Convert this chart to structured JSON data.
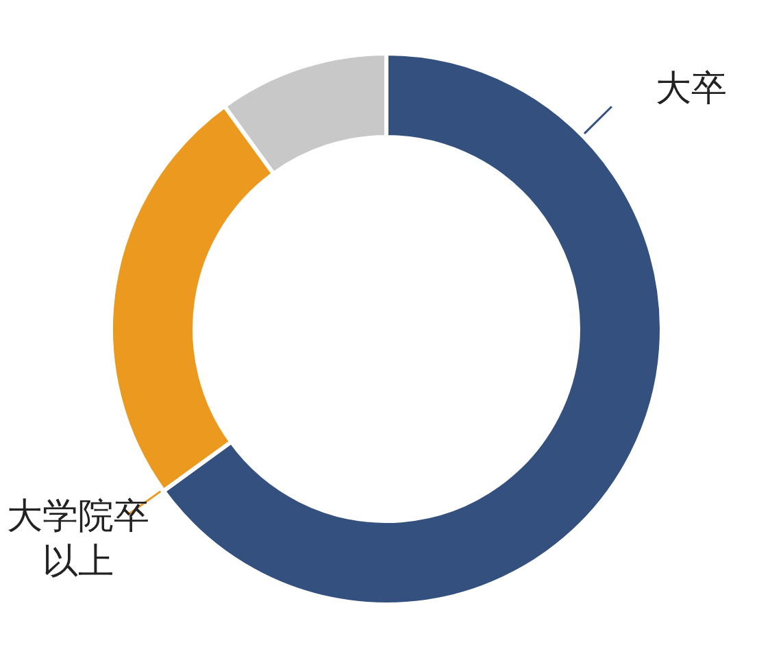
{
  "chart_data": {
    "type": "donut",
    "categories": [
      "大卒",
      "大学院卒以上",
      null
    ],
    "values": [
      65,
      25,
      10
    ],
    "colors": [
      "#34507f",
      "#eb9a1f",
      "#c8c8c8"
    ]
  }
}
